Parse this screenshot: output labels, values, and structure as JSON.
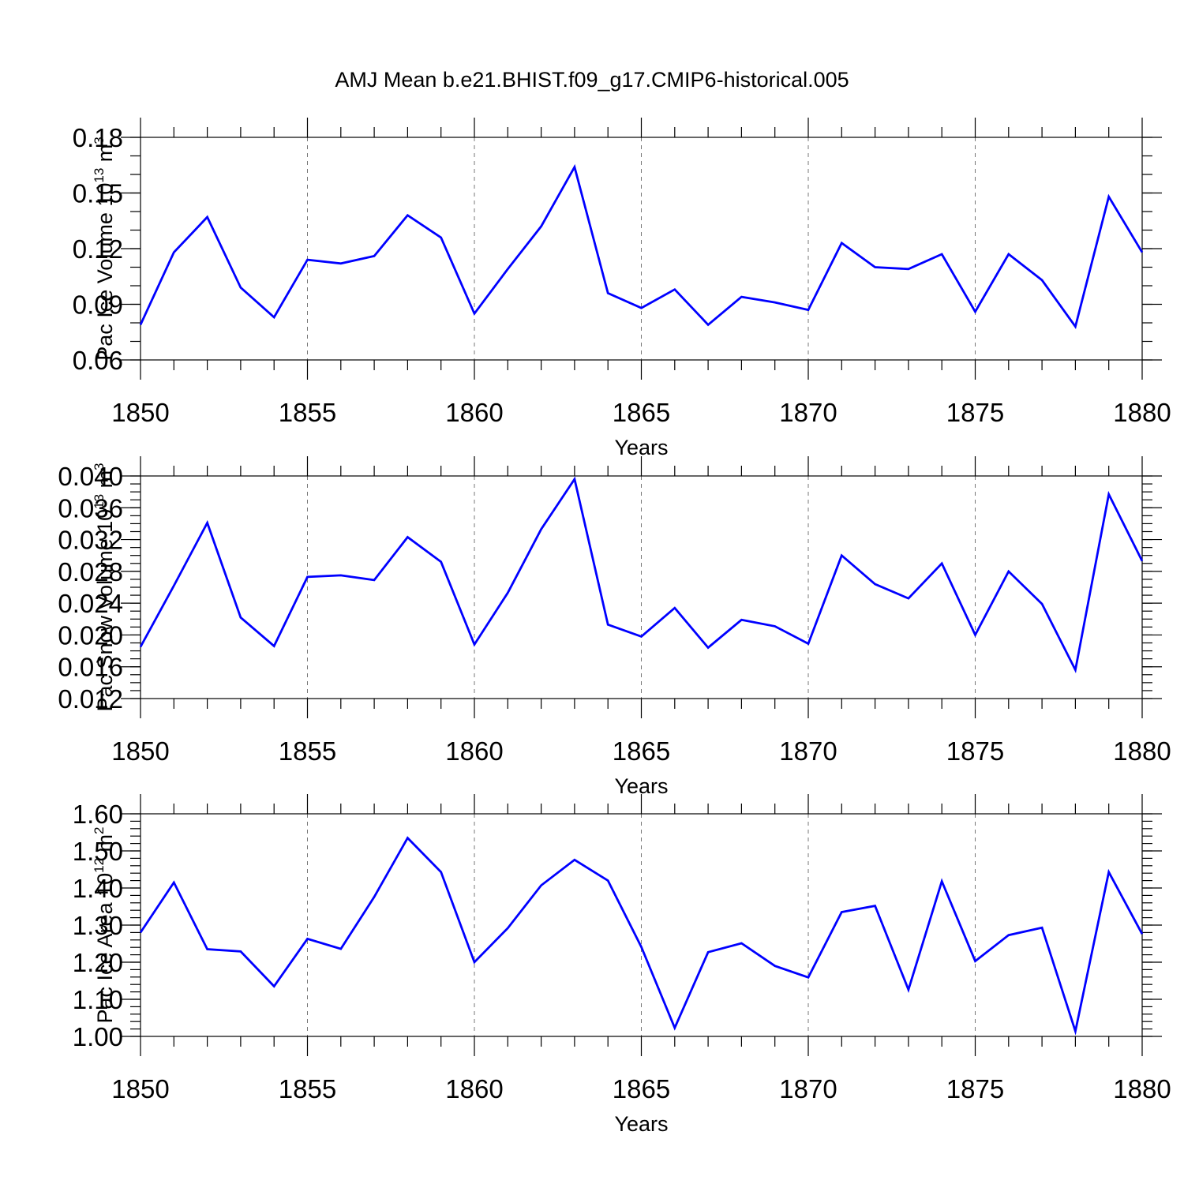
{
  "title": "AMJ Mean b.e21.BHIST.f09_g17.CMIP6-historical.005",
  "chart_data": [
    {
      "type": "line",
      "xlabel": "Years",
      "ylabel": {
        "text": "Pac Ice Volume 10",
        "exp": "13",
        "unit": " m",
        "unit_exp": "3"
      },
      "xlim": [
        1850,
        1880
      ],
      "ylim": [
        0.06,
        0.18
      ],
      "xticks": [
        1850,
        1855,
        1860,
        1865,
        1870,
        1875,
        1880
      ],
      "xtick_labels": [
        "1850",
        "1855",
        "1860",
        "1865",
        "1870",
        "1875",
        "1880"
      ],
      "yticks": [
        0.06,
        0.09,
        0.12,
        0.15,
        0.18
      ],
      "ytick_labels": [
        "0.06",
        "0.09",
        "0.12",
        "0.15",
        "0.18"
      ],
      "y_minor_step": 0.01,
      "grid": "vertical dashed at major x ticks",
      "color": "#0000ff",
      "x": [
        1850,
        1851,
        1852,
        1853,
        1854,
        1855,
        1856,
        1857,
        1858,
        1859,
        1860,
        1861,
        1862,
        1863,
        1864,
        1865,
        1866,
        1867,
        1868,
        1869,
        1870,
        1871,
        1872,
        1873,
        1874,
        1875,
        1876,
        1877,
        1878,
        1879,
        1880
      ],
      "values": [
        0.079,
        0.118,
        0.137,
        0.099,
        0.083,
        0.114,
        0.112,
        0.116,
        0.138,
        0.126,
        0.085,
        0.109,
        0.132,
        0.164,
        0.096,
        0.088,
        0.098,
        0.079,
        0.094,
        0.091,
        0.087,
        0.123,
        0.11,
        0.109,
        0.117,
        0.086,
        0.117,
        0.103,
        0.078,
        0.148,
        0.118
      ]
    },
    {
      "type": "line",
      "xlabel": "Years",
      "ylabel": {
        "text": "Pac Snow Volume 10",
        "exp": "13",
        "unit": " m",
        "unit_exp": "3"
      },
      "xlim": [
        1850,
        1880
      ],
      "ylim": [
        0.012,
        0.04
      ],
      "xticks": [
        1850,
        1855,
        1860,
        1865,
        1870,
        1875,
        1880
      ],
      "xtick_labels": [
        "1850",
        "1855",
        "1860",
        "1865",
        "1870",
        "1875",
        "1880"
      ],
      "yticks": [
        0.012,
        0.016,
        0.02,
        0.024,
        0.028,
        0.032,
        0.036,
        0.04
      ],
      "ytick_labels": [
        "0.012",
        "0.016",
        "0.020",
        "0.024",
        "0.028",
        "0.032",
        "0.036",
        "0.040"
      ],
      "y_minor_step": 0.001,
      "grid": "vertical dashed at major x ticks",
      "color": "#0000ff",
      "x": [
        1850,
        1851,
        1852,
        1853,
        1854,
        1855,
        1856,
        1857,
        1858,
        1859,
        1860,
        1861,
        1862,
        1863,
        1864,
        1865,
        1866,
        1867,
        1868,
        1869,
        1870,
        1871,
        1872,
        1873,
        1874,
        1875,
        1876,
        1877,
        1878,
        1879,
        1880
      ],
      "values": [
        0.0185,
        0.0262,
        0.0341,
        0.0222,
        0.0186,
        0.0273,
        0.0275,
        0.0269,
        0.0323,
        0.0292,
        0.0188,
        0.0253,
        0.0333,
        0.0396,
        0.0213,
        0.0198,
        0.0234,
        0.0184,
        0.0219,
        0.0211,
        0.0189,
        0.03,
        0.0264,
        0.0246,
        0.029,
        0.02,
        0.028,
        0.0239,
        0.0156,
        0.0377,
        0.0293
      ]
    },
    {
      "type": "line",
      "xlabel": "Years",
      "ylabel": {
        "text": "Pac Ice Area 10",
        "exp": "12",
        "unit": " m",
        "unit_exp": "2"
      },
      "xlim": [
        1850,
        1880
      ],
      "ylim": [
        1.0,
        1.6
      ],
      "xticks": [
        1850,
        1855,
        1860,
        1865,
        1870,
        1875,
        1880
      ],
      "xtick_labels": [
        "1850",
        "1855",
        "1860",
        "1865",
        "1870",
        "1875",
        "1880"
      ],
      "yticks": [
        1.0,
        1.1,
        1.2,
        1.3,
        1.4,
        1.5,
        1.6
      ],
      "ytick_labels": [
        "1.00",
        "1.10",
        "1.20",
        "1.30",
        "1.40",
        "1.50",
        "1.60"
      ],
      "y_minor_step": 0.02,
      "grid": "vertical dashed at major x ticks",
      "color": "#0000ff",
      "x": [
        1850,
        1851,
        1852,
        1853,
        1854,
        1855,
        1856,
        1857,
        1858,
        1859,
        1860,
        1861,
        1862,
        1863,
        1864,
        1865,
        1866,
        1867,
        1868,
        1869,
        1870,
        1871,
        1872,
        1873,
        1874,
        1875,
        1876,
        1877,
        1878,
        1879,
        1880
      ],
      "values": [
        1.28,
        1.415,
        1.235,
        1.229,
        1.135,
        1.263,
        1.236,
        1.376,
        1.535,
        1.443,
        1.2,
        1.292,
        1.407,
        1.476,
        1.42,
        1.241,
        1.023,
        1.227,
        1.251,
        1.19,
        1.159,
        1.335,
        1.352,
        1.126,
        1.418,
        1.203,
        1.273,
        1.293,
        1.014,
        1.443,
        1.276
      ]
    }
  ]
}
